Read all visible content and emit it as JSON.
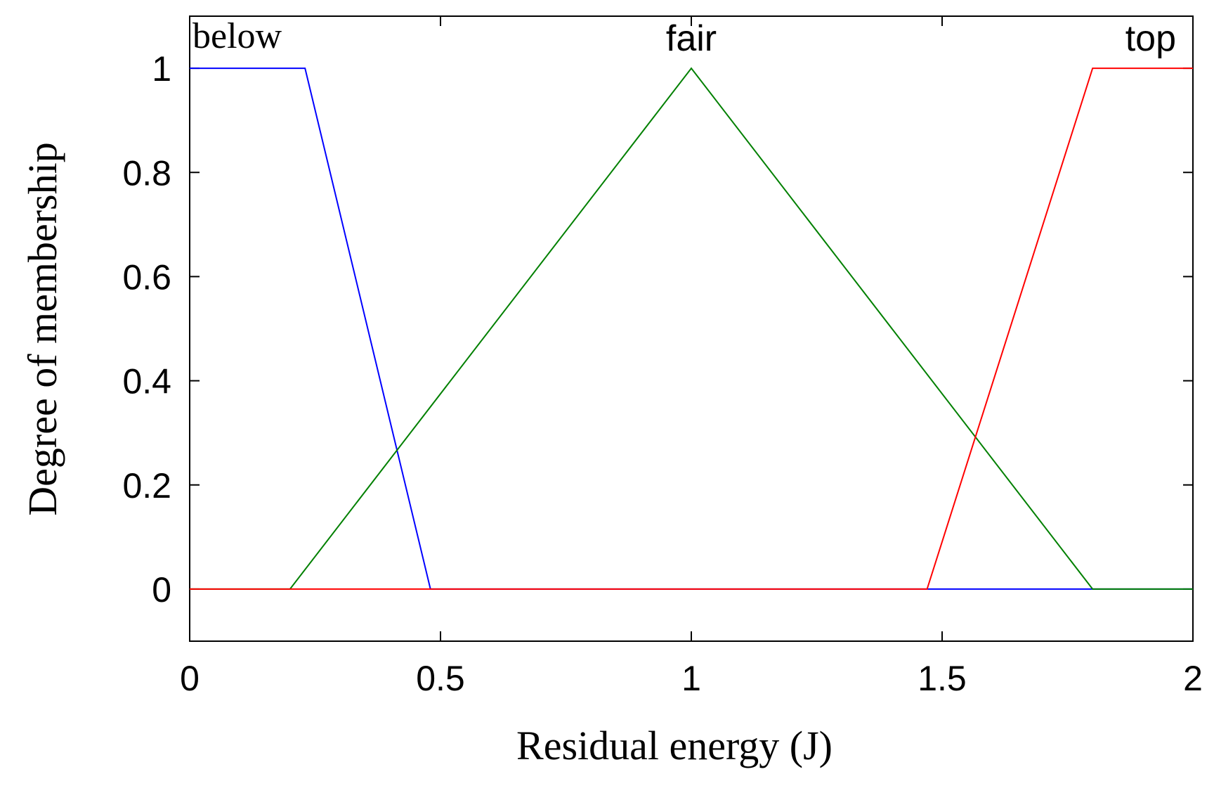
{
  "chart_data": {
    "type": "line",
    "xlabel": "Residual energy (J)",
    "ylabel": "Degree of membership",
    "xlim": [
      0,
      2
    ],
    "ylim": [
      -0.1,
      1.1
    ],
    "xticks": [
      "0",
      "0.5",
      "1",
      "1.5",
      "2"
    ],
    "yticks": [
      "0",
      "0.2",
      "0.4",
      "0.6",
      "0.8",
      "1"
    ],
    "grid": false,
    "legend": "none",
    "series": [
      {
        "name": "below",
        "color": "#0000ff",
        "x": [
          0,
          0.23,
          0.48,
          2
        ],
        "y": [
          1,
          1,
          0,
          0
        ]
      },
      {
        "name": "fair",
        "color": "#008000",
        "x": [
          0,
          0.2,
          1.0,
          1.8,
          2
        ],
        "y": [
          0,
          0,
          1,
          0,
          0
        ]
      },
      {
        "name": "top",
        "color": "#ff0000",
        "x": [
          0,
          1.47,
          1.8,
          2
        ],
        "y": [
          0,
          0,
          1,
          1
        ]
      }
    ]
  }
}
